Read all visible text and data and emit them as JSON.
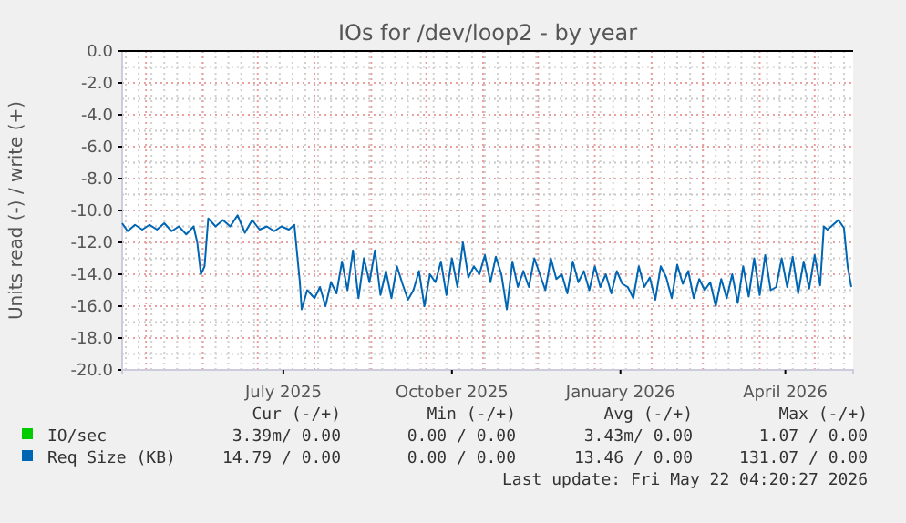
{
  "chart_data": {
    "type": "line",
    "title": "IOs for /dev/loop2 - by year",
    "ylabel": "Units read (-) / write (+)",
    "x": [
      "2025-04-18",
      "2025-04-21",
      "2025-04-25",
      "2025-04-29",
      "2025-05-03",
      "2025-05-07",
      "2025-05-11",
      "2025-05-15",
      "2025-05-19",
      "2025-05-23",
      "2025-05-27",
      "2025-05-29",
      "2025-05-31",
      "2025-06-02",
      "2025-06-04",
      "2025-06-08",
      "2025-06-12",
      "2025-06-16",
      "2025-06-20",
      "2025-06-24",
      "2025-06-28",
      "2025-07-02",
      "2025-07-06",
      "2025-07-10",
      "2025-07-14",
      "2025-07-18",
      "2025-07-21",
      "2025-07-24",
      "2025-07-25",
      "2025-07-28",
      "2025-08-01",
      "2025-08-04",
      "2025-08-07",
      "2025-08-10",
      "2025-08-13",
      "2025-08-16",
      "2025-08-19",
      "2025-08-22",
      "2025-08-25",
      "2025-08-28",
      "2025-08-31",
      "2025-09-03",
      "2025-09-06",
      "2025-09-09",
      "2025-09-12",
      "2025-09-15",
      "2025-09-18",
      "2025-09-21",
      "2025-09-24",
      "2025-09-27",
      "2025-09-30",
      "2025-10-03",
      "2025-10-06",
      "2025-10-09",
      "2025-10-12",
      "2025-10-15",
      "2025-10-18",
      "2025-10-21",
      "2025-10-24",
      "2025-10-27",
      "2025-10-30",
      "2025-11-02",
      "2025-11-05",
      "2025-11-08",
      "2025-11-11",
      "2025-11-14",
      "2025-11-17",
      "2025-11-20",
      "2025-11-23",
      "2025-11-26",
      "2025-11-29",
      "2025-12-02",
      "2025-12-05",
      "2025-12-08",
      "2025-12-11",
      "2025-12-14",
      "2025-12-17",
      "2025-12-20",
      "2025-12-23",
      "2025-12-26",
      "2025-12-29",
      "2026-01-01",
      "2026-01-04",
      "2026-01-07",
      "2026-01-10",
      "2026-01-13",
      "2026-01-16",
      "2026-01-19",
      "2026-01-22",
      "2026-01-25",
      "2026-01-28",
      "2026-01-31",
      "2026-02-03",
      "2026-02-06",
      "2026-02-09",
      "2026-02-12",
      "2026-02-15",
      "2026-02-18",
      "2026-02-21",
      "2026-02-24",
      "2026-02-27",
      "2026-03-02",
      "2026-03-05",
      "2026-03-08",
      "2026-03-11",
      "2026-03-14",
      "2026-03-17",
      "2026-03-20",
      "2026-03-23",
      "2026-03-26",
      "2026-03-29",
      "2026-04-01",
      "2026-04-04",
      "2026-04-07",
      "2026-04-10",
      "2026-04-13",
      "2026-04-16",
      "2026-04-19",
      "2026-04-22",
      "2026-04-25",
      "2026-04-28",
      "2026-05-01",
      "2026-05-04",
      "2026-05-06",
      "2026-05-08",
      "2026-05-11",
      "2026-05-14",
      "2026-05-17",
      "2026-05-19",
      "2026-05-21"
    ],
    "series": [
      {
        "name": "IO/sec",
        "color": "#00cc00",
        "values": [
          null,
          null,
          null,
          null,
          null,
          null,
          null,
          null,
          null,
          null,
          null,
          null,
          null,
          null,
          null,
          null,
          null,
          null,
          null,
          null,
          null,
          null,
          null,
          null,
          null,
          null,
          null,
          null,
          null,
          null,
          null,
          null,
          null,
          null,
          null,
          null,
          null,
          null,
          null,
          null,
          null,
          null,
          null,
          null,
          null,
          null,
          null,
          null,
          null,
          null,
          null,
          null,
          null,
          null,
          null,
          null,
          null,
          null,
          null,
          null,
          null,
          null,
          null,
          null,
          null,
          null,
          null,
          null,
          null,
          null,
          null,
          null,
          null,
          null,
          null,
          null,
          null,
          null,
          null,
          null,
          null,
          null,
          null,
          null,
          null,
          null,
          null,
          null,
          null,
          null,
          null,
          null,
          null,
          null,
          null,
          null,
          null,
          null,
          null,
          null,
          null,
          null,
          null,
          null,
          null,
          null,
          null,
          null,
          null,
          null,
          null,
          null,
          null,
          null,
          null,
          null,
          null,
          null,
          null,
          null,
          null,
          null,
          null,
          null,
          null,
          null,
          null,
          null,
          null,
          null
        ]
      },
      {
        "name": "Req Size (KB)",
        "color": "#0066b3",
        "values": [
          -10.8,
          -11.3,
          -10.9,
          -11.2,
          -10.9,
          -11.2,
          -10.8,
          -11.3,
          -11.0,
          -11.5,
          -11.0,
          -12.0,
          -14.0,
          -13.5,
          -10.5,
          -11.0,
          -10.6,
          -11.0,
          -10.3,
          -11.4,
          -10.6,
          -11.2,
          -11.0,
          -11.3,
          -11.0,
          -11.2,
          -10.9,
          -14.5,
          -16.2,
          -15.0,
          -15.5,
          -14.8,
          -16.0,
          -14.5,
          -15.2,
          -13.2,
          -15.0,
          -12.5,
          -15.5,
          -13.0,
          -14.5,
          -12.5,
          -15.3,
          -13.8,
          -15.5,
          -13.5,
          -14.6,
          -15.6,
          -15.0,
          -13.8,
          -16.0,
          -14.0,
          -14.5,
          -13.2,
          -15.3,
          -13.0,
          -14.8,
          -12.0,
          -14.2,
          -13.5,
          -14.0,
          -12.8,
          -14.5,
          -12.9,
          -14.0,
          -16.2,
          -13.2,
          -14.8,
          -13.8,
          -14.8,
          -13.0,
          -14.0,
          -15.0,
          -13.0,
          -14.3,
          -14.0,
          -15.2,
          -13.2,
          -14.5,
          -13.8,
          -15.0,
          -13.5,
          -14.8,
          -14.0,
          -15.2,
          -13.8,
          -14.6,
          -14.8,
          -15.5,
          -13.5,
          -14.8,
          -14.2,
          -15.6,
          -13.5,
          -14.2,
          -15.5,
          -13.4,
          -14.6,
          -13.8,
          -15.5,
          -14.3,
          -15.0,
          -14.5,
          -16.0,
          -14.3,
          -15.5,
          -14.0,
          -15.8,
          -13.5,
          -15.4,
          -13.0,
          -15.3,
          -12.8,
          -15.0,
          -14.8,
          -13.0,
          -14.8,
          -12.9,
          -15.2,
          -13.2,
          -14.9,
          -12.8,
          -14.7,
          -11.0,
          -11.2,
          -10.9,
          -10.6,
          -11.1,
          -13.5,
          -14.8
        ]
      }
    ],
    "xlim": [
      "2025-04-18",
      "2026-05-22"
    ],
    "xticks": [
      {
        "value": "2025-07-15",
        "label": "July 2025"
      },
      {
        "value": "2025-10-15",
        "label": "October 2025"
      },
      {
        "value": "2026-01-15",
        "label": "January 2026"
      },
      {
        "value": "2026-04-15",
        "label": "April 2026"
      }
    ],
    "ylim": [
      -20,
      0
    ],
    "yticks": [
      {
        "value": 0,
        "label": "0.0"
      },
      {
        "value": -2,
        "label": "-2.0"
      },
      {
        "value": -4,
        "label": "-4.0"
      },
      {
        "value": -6,
        "label": "-6.0"
      },
      {
        "value": -8,
        "label": "-8.0"
      },
      {
        "value": -10,
        "label": "-10.0"
      },
      {
        "value": -12,
        "label": "-12.0"
      },
      {
        "value": -14,
        "label": "-14.0"
      },
      {
        "value": -16,
        "label": "-16.0"
      },
      {
        "value": -18,
        "label": "-18.0"
      },
      {
        "value": -20,
        "label": "-20.0"
      }
    ],
    "grid": true,
    "legend": "bottom",
    "ref_lines": [
      {
        "axis": "y",
        "value": 0,
        "color": "#000000"
      }
    ],
    "annotations": [
      "Cur (-/+)",
      "Min (-/+)",
      "Avg (-/+)",
      "Max (-/+)",
      "3.39m/ 0.00",
      "0.00 / 0.00",
      "3.43m/ 0.00",
      "1.07 / 0.00",
      "14.79 / 0.00",
      "0.00 / 0.00",
      "13.46 / 0.00",
      "131.07 / 0.00",
      "Last update: Fri May 22 04:20:27 2026"
    ]
  }
}
